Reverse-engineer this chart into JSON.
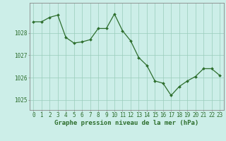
{
  "x": [
    0,
    1,
    2,
    3,
    4,
    5,
    6,
    7,
    8,
    9,
    10,
    11,
    12,
    13,
    14,
    15,
    16,
    17,
    18,
    19,
    20,
    21,
    22,
    23
  ],
  "y": [
    1028.5,
    1028.5,
    1028.7,
    1028.8,
    1027.8,
    1027.55,
    1027.6,
    1027.7,
    1028.2,
    1028.2,
    1028.85,
    1028.1,
    1027.65,
    1026.9,
    1026.55,
    1025.85,
    1025.75,
    1025.2,
    1025.6,
    1025.85,
    1026.05,
    1026.4,
    1026.4,
    1026.1
  ],
  "line_color": "#2d6e2d",
  "marker": "D",
  "marker_size": 2.0,
  "linewidth": 0.9,
  "bg_color": "#cceee8",
  "grid_color": "#99ccbb",
  "xlabel": "Graphe pression niveau de la mer (hPa)",
  "xlabel_fontsize": 6.5,
  "yticks": [
    1025,
    1026,
    1027,
    1028
  ],
  "xticks": [
    0,
    1,
    2,
    3,
    4,
    5,
    6,
    7,
    8,
    9,
    10,
    11,
    12,
    13,
    14,
    15,
    16,
    17,
    18,
    19,
    20,
    21,
    22,
    23
  ],
  "ylim": [
    1024.55,
    1029.35
  ],
  "xlim": [
    -0.5,
    23.5
  ],
  "tick_fontsize": 5.5,
  "tick_color": "#2d6e2d",
  "spine_color": "#888888"
}
